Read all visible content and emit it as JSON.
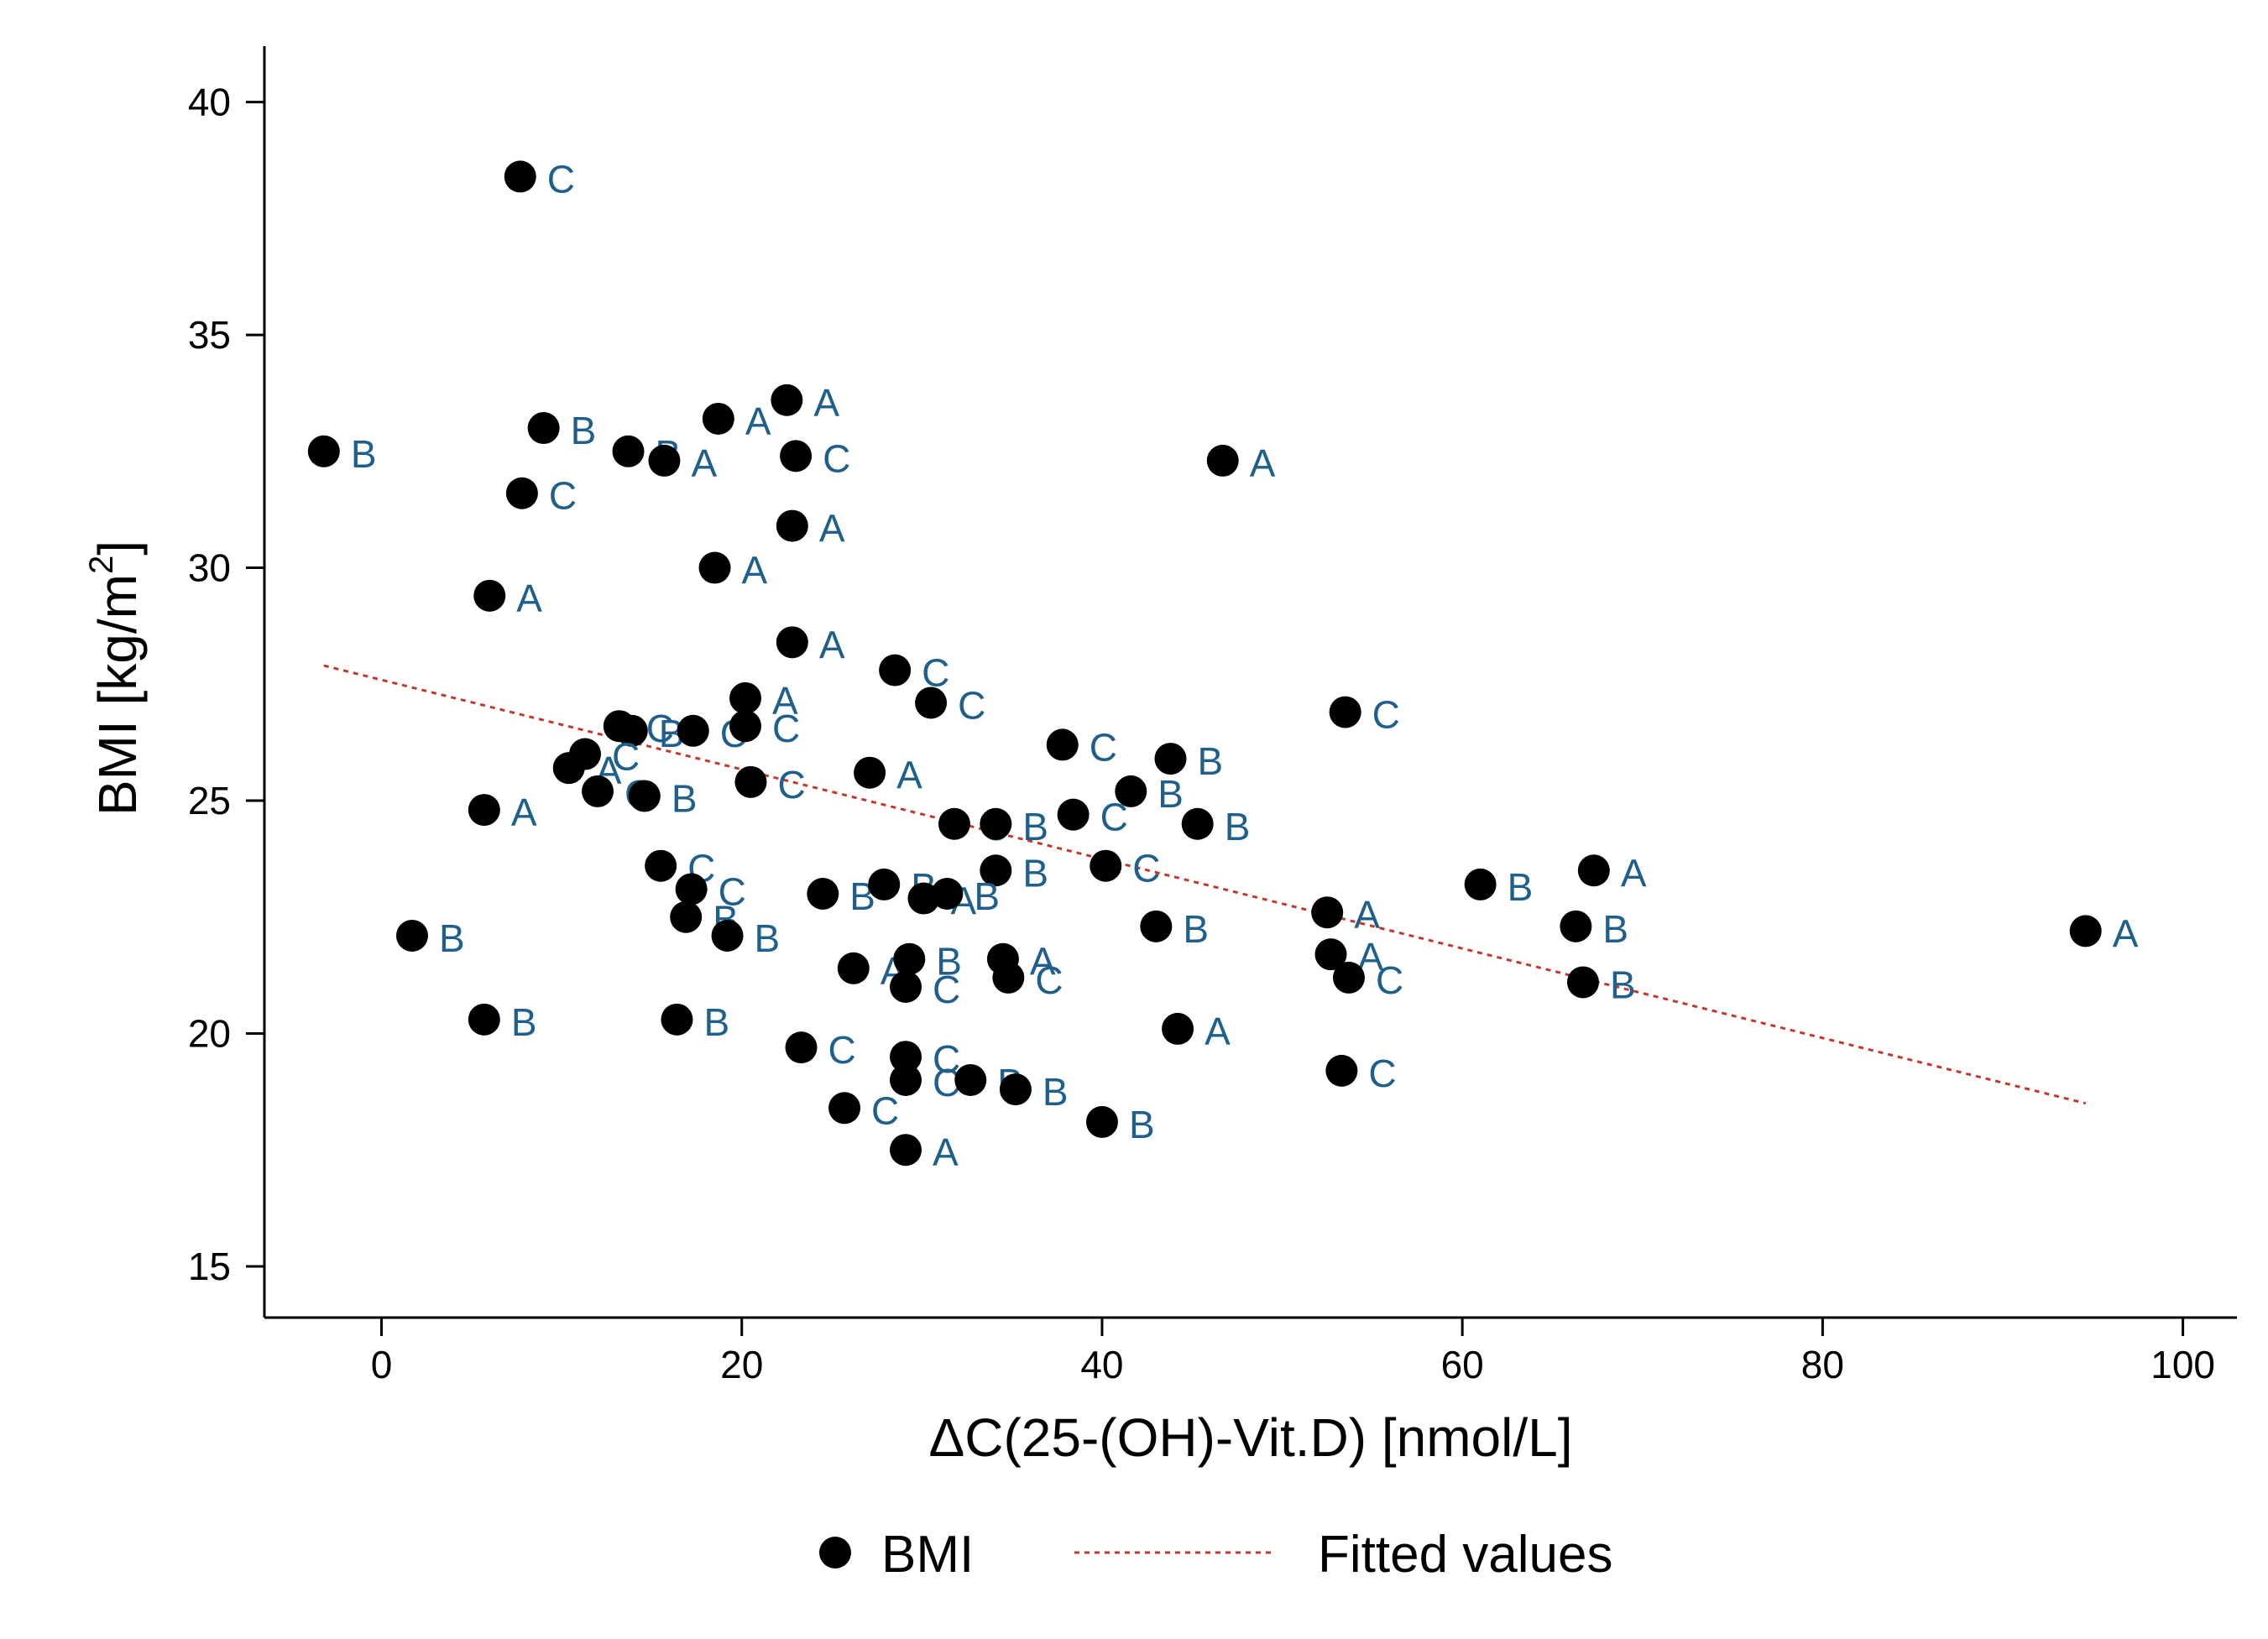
{
  "chart_data": {
    "type": "scatter",
    "title": "",
    "xlabel": "ΔC(25-(OH)-Vit.D) [nmol/L]",
    "ylabel": "BMI [kg/m",
    "ylabel_sup": "2",
    "ylabel_close": "]",
    "xlim": [
      -6.5,
      103
    ],
    "ylim": [
      13.9,
      41.2
    ],
    "xticks": [
      0,
      20,
      40,
      60,
      80,
      100
    ],
    "yticks": [
      15,
      20,
      25,
      30,
      35,
      40
    ],
    "grid": false,
    "colors": {
      "marker": "#000000",
      "label": "#1f5f8b",
      "fit": "#c0392b",
      "axis": "#000000"
    },
    "series": [
      {
        "name": "BMI",
        "marker": "filled-circle",
        "points": [
          {
            "x": 7.7,
            "y": 38.4,
            "label": "C"
          },
          {
            "x": -3.2,
            "y": 32.5,
            "label": "B"
          },
          {
            "x": 9.0,
            "y": 33.0,
            "label": "B"
          },
          {
            "x": 7.8,
            "y": 31.6,
            "label": "C"
          },
          {
            "x": 13.7,
            "y": 32.5,
            "label": "B"
          },
          {
            "x": 15.7,
            "y": 32.3,
            "label": "A"
          },
          {
            "x": 18.7,
            "y": 33.2,
            "label": "A"
          },
          {
            "x": 22.5,
            "y": 33.6,
            "label": "A"
          },
          {
            "x": 23.0,
            "y": 32.4,
            "label": "C"
          },
          {
            "x": 46.7,
            "y": 32.3,
            "label": "A"
          },
          {
            "x": 22.8,
            "y": 30.9,
            "label": "A"
          },
          {
            "x": 18.5,
            "y": 30.0,
            "label": "A"
          },
          {
            "x": 6.0,
            "y": 29.4,
            "label": "A"
          },
          {
            "x": 22.8,
            "y": 28.4,
            "label": "A"
          },
          {
            "x": 28.5,
            "y": 27.8,
            "label": "C"
          },
          {
            "x": 30.5,
            "y": 27.1,
            "label": "C"
          },
          {
            "x": 20.2,
            "y": 27.2,
            "label": "A"
          },
          {
            "x": 53.5,
            "y": 26.9,
            "label": "C"
          },
          {
            "x": 13.2,
            "y": 26.6,
            "label": "C"
          },
          {
            "x": 13.9,
            "y": 26.5,
            "label": "B"
          },
          {
            "x": 17.3,
            "y": 26.5,
            "label": "C"
          },
          {
            "x": 20.2,
            "y": 26.6,
            "label": "C"
          },
          {
            "x": 37.8,
            "y": 26.2,
            "label": "C"
          },
          {
            "x": 43.8,
            "y": 25.9,
            "label": "B"
          },
          {
            "x": 10.4,
            "y": 25.7,
            "label": "A"
          },
          {
            "x": 11.3,
            "y": 26.0,
            "label": "C"
          },
          {
            "x": 27.1,
            "y": 25.6,
            "label": "A"
          },
          {
            "x": 12.0,
            "y": 25.2,
            "label": "C"
          },
          {
            "x": 14.6,
            "y": 25.1,
            "label": "B"
          },
          {
            "x": 20.5,
            "y": 25.4,
            "label": "C"
          },
          {
            "x": 41.6,
            "y": 25.2,
            "label": "B"
          },
          {
            "x": 5.7,
            "y": 24.8,
            "label": "A"
          },
          {
            "x": 31.8,
            "y": 24.5,
            "label": "C"
          },
          {
            "x": 34.1,
            "y": 24.5,
            "label": "B"
          },
          {
            "x": 38.4,
            "y": 24.7,
            "label": "C"
          },
          {
            "x": 45.3,
            "y": 24.5,
            "label": "B"
          },
          {
            "x": 15.5,
            "y": 23.6,
            "label": "C"
          },
          {
            "x": 34.1,
            "y": 23.5,
            "label": "B"
          },
          {
            "x": 40.2,
            "y": 23.6,
            "label": "C"
          },
          {
            "x": 67.3,
            "y": 23.5,
            "label": "A"
          },
          {
            "x": 61.0,
            "y": 23.2,
            "label": "B"
          },
          {
            "x": 17.2,
            "y": 23.1,
            "label": "C"
          },
          {
            "x": 24.5,
            "y": 23.0,
            "label": "B"
          },
          {
            "x": 27.9,
            "y": 23.2,
            "label": "B"
          },
          {
            "x": 30.1,
            "y": 22.9,
            "label": "A"
          },
          {
            "x": 31.4,
            "y": 23.0,
            "label": "B"
          },
          {
            "x": 52.5,
            "y": 22.6,
            "label": "A"
          },
          {
            "x": 16.9,
            "y": 22.5,
            "label": "B"
          },
          {
            "x": 19.2,
            "y": 22.1,
            "label": "B"
          },
          {
            "x": 43.0,
            "y": 22.3,
            "label": "B"
          },
          {
            "x": 66.3,
            "y": 22.3,
            "label": "B"
          },
          {
            "x": 94.6,
            "y": 22.2,
            "label": "A"
          },
          {
            "x": 1.7,
            "y": 22.1,
            "label": "B"
          },
          {
            "x": 26.2,
            "y": 21.4,
            "label": "A"
          },
          {
            "x": 29.3,
            "y": 21.6,
            "label": "B"
          },
          {
            "x": 34.5,
            "y": 21.6,
            "label": "A"
          },
          {
            "x": 34.8,
            "y": 21.2,
            "label": "C"
          },
          {
            "x": 52.7,
            "y": 21.7,
            "label": "A"
          },
          {
            "x": 53.7,
            "y": 21.2,
            "label": "C"
          },
          {
            "x": 66.7,
            "y": 21.1,
            "label": "B"
          },
          {
            "x": 29.1,
            "y": 21.0,
            "label": "C"
          },
          {
            "x": 5.7,
            "y": 20.3,
            "label": "B"
          },
          {
            "x": 16.4,
            "y": 20.3,
            "label": "B"
          },
          {
            "x": 44.2,
            "y": 20.1,
            "label": "A"
          },
          {
            "x": 23.3,
            "y": 19.7,
            "label": "C"
          },
          {
            "x": 29.1,
            "y": 19.5,
            "label": "C"
          },
          {
            "x": 53.3,
            "y": 19.2,
            "label": "C"
          },
          {
            "x": 29.1,
            "y": 19.0,
            "label": "C"
          },
          {
            "x": 32.7,
            "y": 19.0,
            "label": "B"
          },
          {
            "x": 35.2,
            "y": 18.8,
            "label": "B"
          },
          {
            "x": 25.7,
            "y": 18.4,
            "label": "C"
          },
          {
            "x": 40.0,
            "y": 18.1,
            "label": "B"
          },
          {
            "x": 29.1,
            "y": 17.5,
            "label": "A"
          }
        ]
      },
      {
        "name": "Fitted values",
        "type": "line",
        "style": "dotted",
        "x": [
          -3.2,
          94.6
        ],
        "y": [
          27.9,
          18.5
        ]
      }
    ],
    "legend": {
      "position": "bottom",
      "entries": [
        "BMI",
        "Fitted values"
      ]
    }
  }
}
